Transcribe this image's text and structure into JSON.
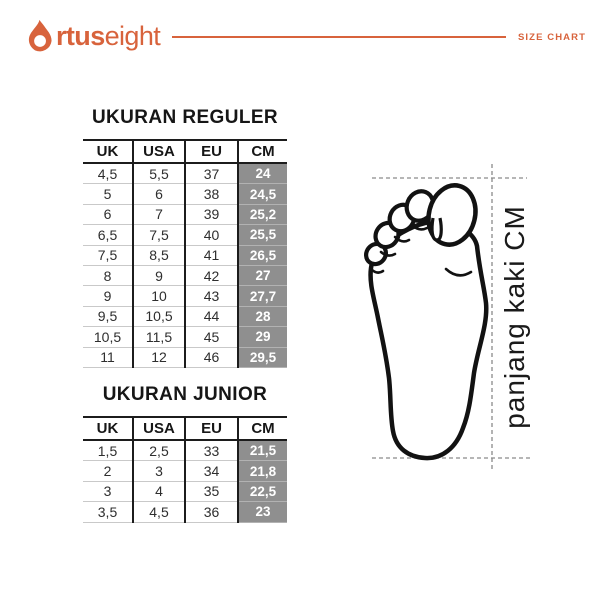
{
  "header": {
    "brand_bold": "rtus",
    "brand_light": "eight",
    "size_chart_label": "SIZE CHART"
  },
  "colors": {
    "accent": "#D8633C",
    "ink": "#161616",
    "table-line": "#1c1c1c",
    "row-line": "#c9c9c9",
    "cm-bg": "#8F8F8F",
    "dash": "#8a8a8a",
    "foot-line": "#121212"
  },
  "regular_table": {
    "title": "UKURAN REGULER",
    "columns": [
      "UK",
      "USA",
      "EU",
      "CM"
    ],
    "rows": [
      [
        "4,5",
        "5,5",
        "37",
        "24"
      ],
      [
        "5",
        "6",
        "38",
        "24,5"
      ],
      [
        "6",
        "7",
        "39",
        "25,2"
      ],
      [
        "6,5",
        "7,5",
        "40",
        "25,5"
      ],
      [
        "7,5",
        "8,5",
        "41",
        "26,5"
      ],
      [
        "8",
        "9",
        "42",
        "27"
      ],
      [
        "9",
        "10",
        "43",
        "27,7"
      ],
      [
        "9,5",
        "10,5",
        "44",
        "28"
      ],
      [
        "10,5",
        "11,5",
        "45",
        "29"
      ],
      [
        "11",
        "12",
        "46",
        "29,5"
      ]
    ]
  },
  "junior_table": {
    "title": "UKURAN JUNIOR",
    "columns": [
      "UK",
      "USA",
      "EU",
      "CM"
    ],
    "rows": [
      [
        "1,5",
        "2,5",
        "33",
        "21,5"
      ],
      [
        "2",
        "3",
        "34",
        "21,8"
      ],
      [
        "3",
        "4",
        "35",
        "22,5"
      ],
      [
        "3,5",
        "4,5",
        "36",
        "23"
      ]
    ]
  },
  "foot_diagram": {
    "label": "panjang kaki CM"
  }
}
